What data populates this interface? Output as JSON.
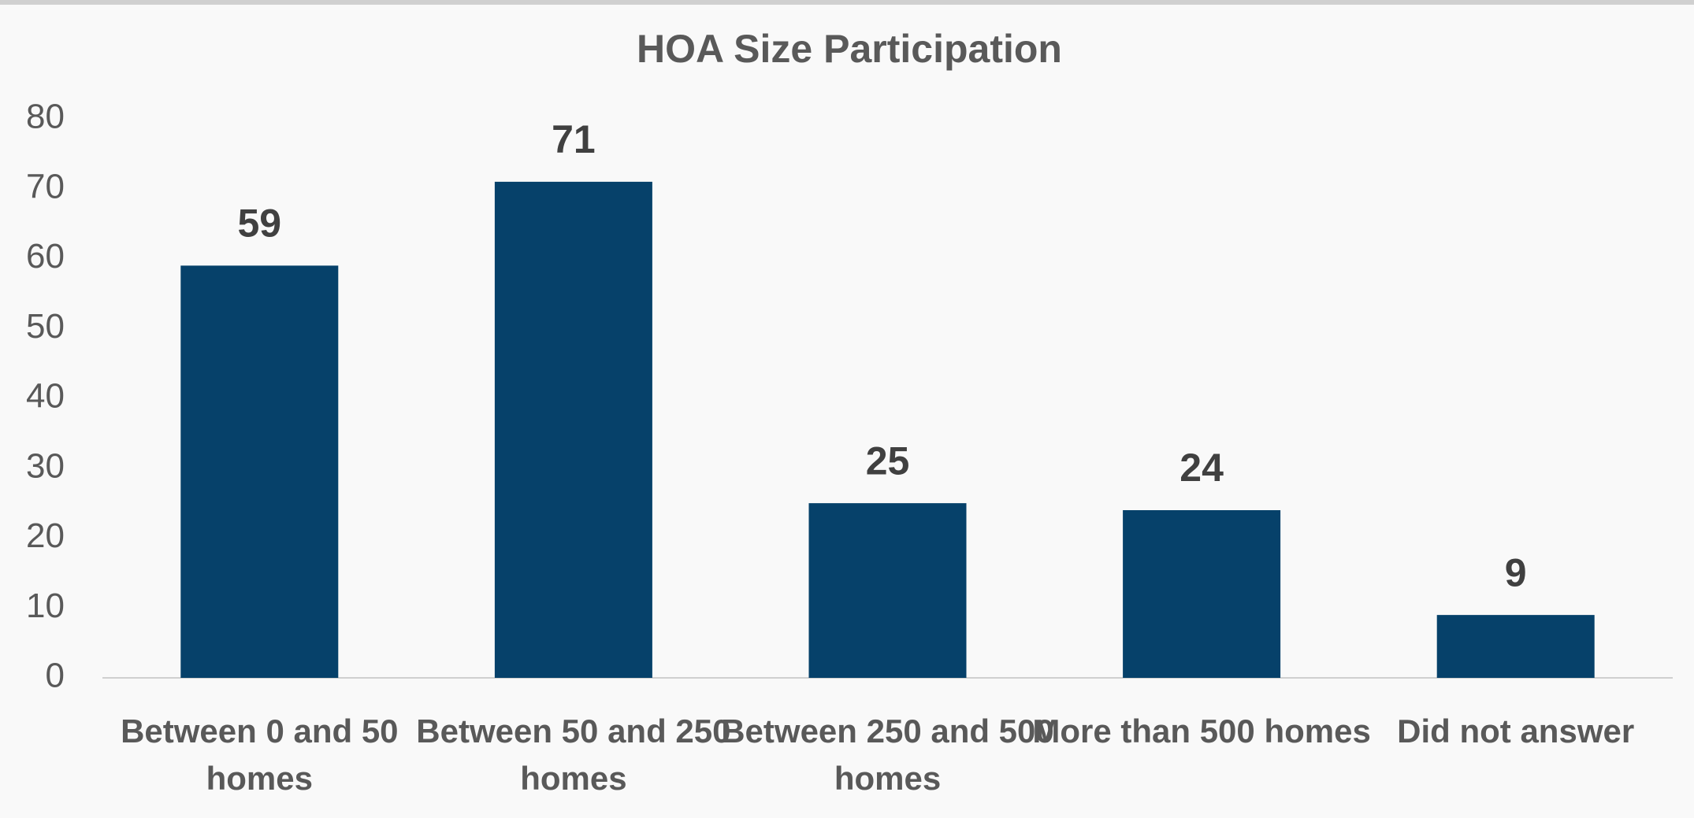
{
  "chart_data": {
    "type": "bar",
    "title": "HOA Size Participation",
    "categories": [
      "Between 0 and 50 homes",
      "Between 50 and 250 homes",
      "Between 250 and 500 homes",
      "More than 500 homes",
      "Did not answer"
    ],
    "values": [
      59,
      71,
      25,
      24,
      9
    ],
    "color": "#06416a",
    "ylim": [
      0,
      80
    ],
    "yticks": [
      0,
      10,
      20,
      30,
      40,
      50,
      60,
      70,
      80
    ],
    "grid": false,
    "data_labels": true
  }
}
